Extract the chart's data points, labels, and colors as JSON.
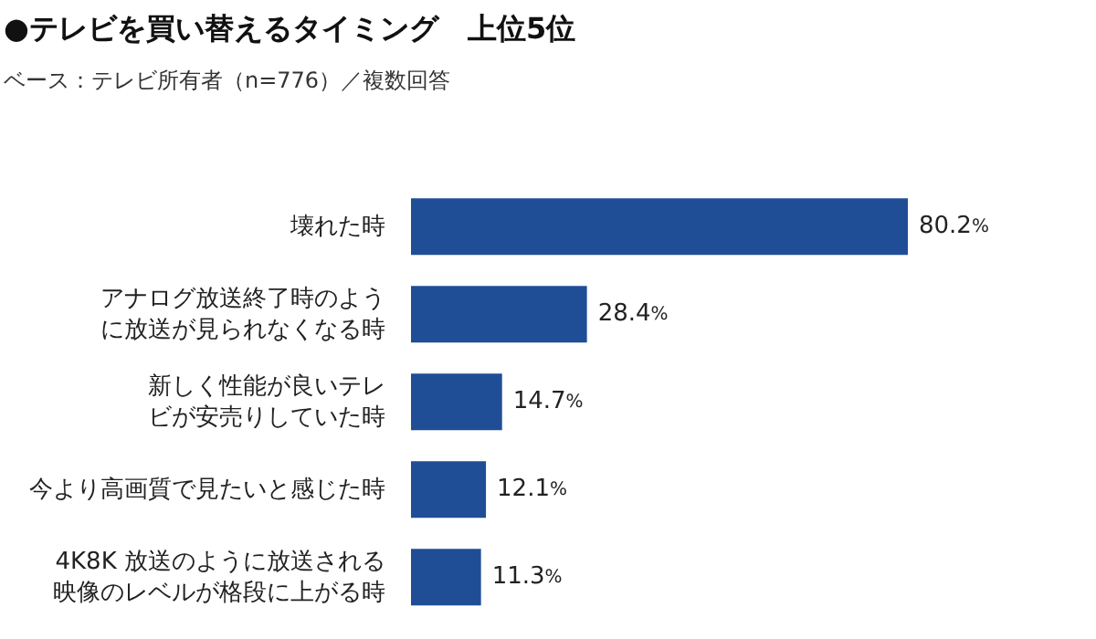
{
  "chart_data": {
    "type": "bar",
    "orientation": "horizontal",
    "title": "●テレビを買い替えるタイミング　上位5位",
    "subtitle": "ベース：テレビ所有者（n=776）／複数回答",
    "categories": [
      "壊れた時",
      "アナログ放送終了時のように放送が見られなくなる時",
      "新しく性能が良いテレビが安売りしていた時",
      "今より高画質で見たいと感じた時",
      "4K8K 放送のように放送される映像のレベルが格段に上がる時"
    ],
    "values": [
      80.2,
      28.4,
      14.7,
      12.1,
      11.3
    ],
    "value_labels": [
      "80.2%",
      "28.4%",
      "14.7%",
      "12.1%",
      "11.3%"
    ],
    "color": "#1f4e96"
  }
}
